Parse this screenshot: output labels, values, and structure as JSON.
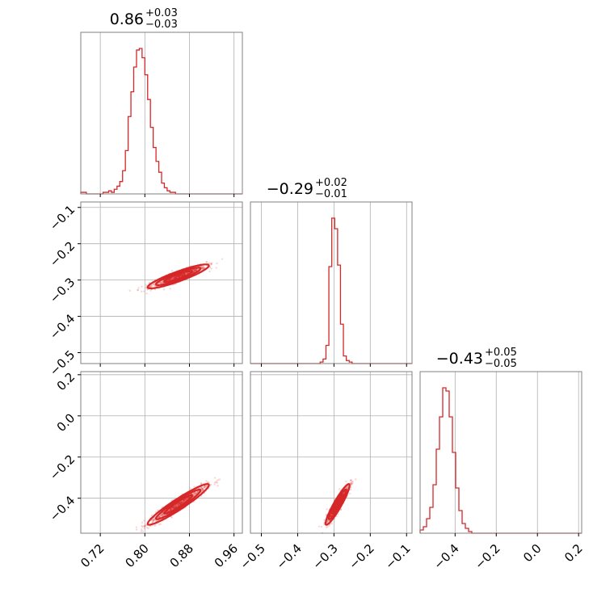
{
  "chart_data": {
    "type": "corner",
    "color": "#d62728",
    "grid": true,
    "parameters": [
      {
        "title": {
          "median": "0.86",
          "upper": "+0.03",
          "lower": "−0.03"
        },
        "range": [
          0.685,
          0.975
        ],
        "ticks": [
          0.72,
          0.8,
          0.88,
          0.96
        ],
        "tick_labels": [
          "0.72",
          "0.80",
          "0.88",
          "0.96"
        ],
        "mean": 0.86,
        "sd": 0.025,
        "hist": {
          "bin_width": 0.005,
          "start": 0.685,
          "counts": [
            1,
            1,
            0,
            0,
            0,
            0,
            0,
            0,
            1,
            1,
            2,
            1,
            3,
            5,
            8,
            15,
            28,
            50,
            66,
            82,
            93,
            94,
            88,
            77,
            61,
            43,
            30,
            21,
            14,
            7,
            4,
            2,
            1,
            1,
            0,
            0,
            0,
            0,
            0,
            0,
            0,
            0,
            0,
            0,
            0,
            0,
            0,
            0,
            0,
            0,
            0,
            0,
            0,
            0,
            0,
            0,
            0,
            0
          ]
        }
      },
      {
        "title": {
          "median": "−0.29",
          "upper": "+0.02",
          "lower": "−0.01"
        },
        "range": [
          -0.53,
          -0.085
        ],
        "ticks": [
          -0.5,
          -0.4,
          -0.3,
          -0.2,
          -0.1
        ],
        "tick_labels": [
          "−0.5",
          "−0.4",
          "−0.3",
          "−0.2",
          "−0.1"
        ],
        "mean": -0.29,
        "sd": 0.015,
        "hist": {
          "bin_width": 0.008,
          "start": -0.53,
          "counts": [
            0,
            0,
            0,
            0,
            0,
            0,
            0,
            0,
            0,
            0,
            0,
            0,
            0,
            0,
            0,
            0,
            0,
            0,
            0,
            0,
            0,
            0,
            0,
            0,
            1,
            3,
            12,
            64,
            96,
            89,
            65,
            26,
            5,
            2,
            1,
            0,
            0,
            0,
            0,
            0,
            0,
            0,
            0,
            0,
            0,
            0,
            0,
            0,
            0,
            0,
            0,
            0,
            0,
            0,
            0,
            0
          ]
        }
      },
      {
        "title": {
          "median": "−0.43",
          "upper": "+0.05",
          "lower": "−0.05"
        },
        "range": [
          -0.57,
          0.215
        ],
        "ticks": [
          -0.4,
          -0.2,
          0.0,
          0.2
        ],
        "tick_labels": [
          "−0.4",
          "−0.2",
          "0.0",
          "0.2"
        ],
        "mean": -0.43,
        "sd": 0.045,
        "hist": {
          "bin_width": 0.0157,
          "start": -0.57,
          "counts": [
            2,
            4,
            9,
            16,
            30,
            52,
            72,
            90,
            88,
            72,
            50,
            28,
            14,
            6,
            3,
            1,
            0,
            0,
            0,
            0,
            0,
            0,
            0,
            0,
            0,
            0,
            0,
            0,
            0,
            0,
            0,
            0,
            0,
            0,
            0,
            0,
            0,
            0,
            0,
            0,
            0,
            0,
            0,
            0,
            0,
            0,
            0,
            0,
            0,
            0
          ]
        }
      }
    ],
    "correlations": {
      "0-1": 0.9,
      "0-2": 0.95,
      "1-2": 0.93
    }
  }
}
